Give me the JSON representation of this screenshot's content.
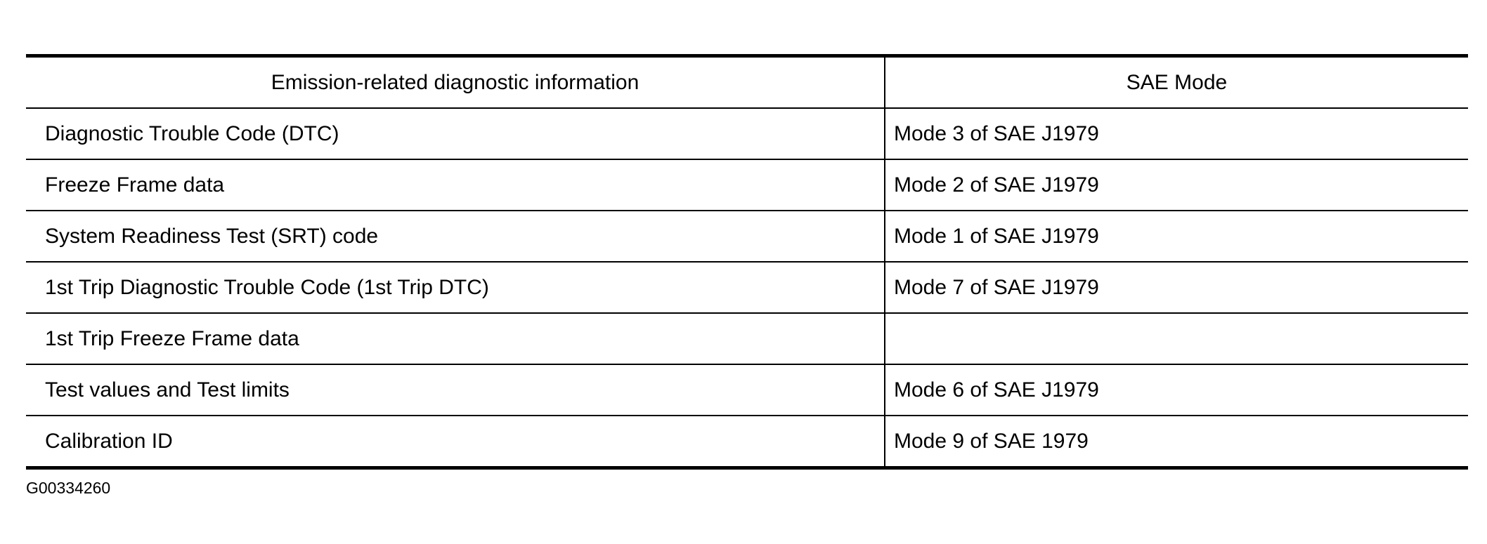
{
  "table": {
    "headers": [
      "Emission-related diagnostic information",
      "SAE Mode"
    ],
    "rows": [
      [
        "Diagnostic Trouble Code (DTC)",
        "Mode 3 of SAE J1979"
      ],
      [
        "Freeze Frame data",
        "Mode 2 of SAE J1979"
      ],
      [
        "System Readiness Test (SRT) code",
        "Mode 1 of SAE J1979"
      ],
      [
        "1st Trip Diagnostic Trouble Code (1st Trip DTC)",
        "Mode 7 of SAE J1979"
      ],
      [
        "1st Trip Freeze Frame data",
        ""
      ],
      [
        "Test values and Test limits",
        "Mode 6 of SAE J1979"
      ],
      [
        "Calibration ID",
        "Mode 9 of SAE 1979"
      ]
    ]
  },
  "footer": {
    "figure_id": "G00334260"
  }
}
